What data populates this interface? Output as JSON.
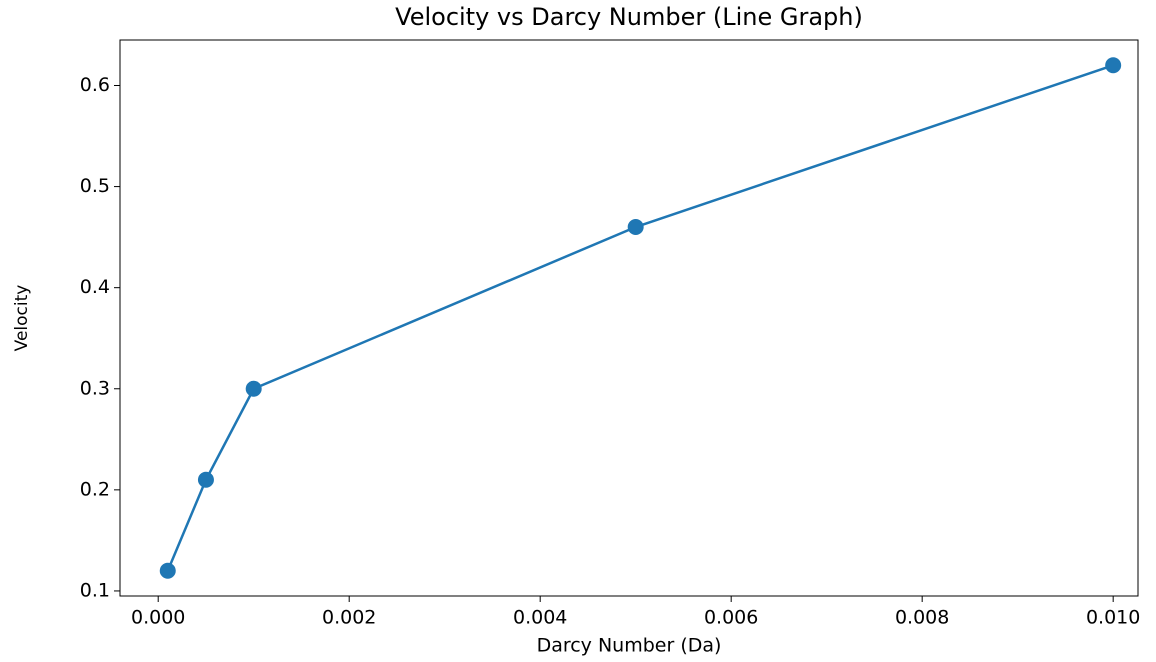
{
  "chart_data": {
    "type": "line",
    "title": "Velocity vs Darcy Number (Line Graph)",
    "xlabel": "Darcy Number (Da)",
    "ylabel": "Velocity",
    "x": [
      0.0001,
      0.0005,
      0.001,
      0.005,
      0.01
    ],
    "series": [
      {
        "name": "Velocity",
        "color": "#1f77b4",
        "values": [
          0.12,
          0.21,
          0.3,
          0.46,
          0.62
        ]
      }
    ],
    "xlim": [
      -0.0004,
      0.01026
    ],
    "xticks": [
      {
        "value": 0,
        "label": "0.000"
      },
      {
        "value": 0.002,
        "label": "0.002"
      },
      {
        "value": 0.004,
        "label": "0.004"
      },
      {
        "value": 0.006,
        "label": "0.006"
      },
      {
        "value": 0.008,
        "label": "0.008"
      },
      {
        "value": 0.01,
        "label": "0.010"
      }
    ],
    "ylim": [
      0.095,
      0.645
    ],
    "yticks": [
      0.1,
      0.2,
      0.3,
      0.4,
      0.5,
      0.6
    ],
    "grid": false
  }
}
